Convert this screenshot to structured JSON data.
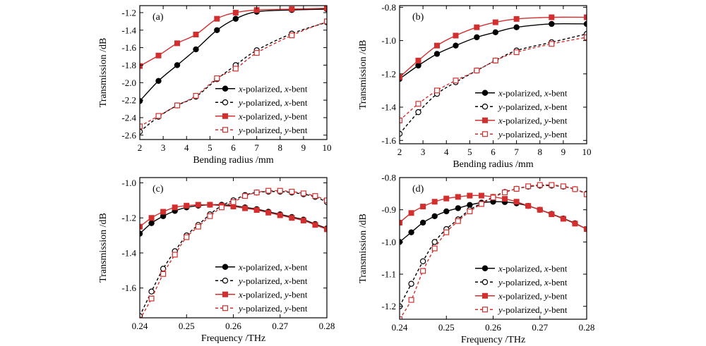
{
  "colors": {
    "black": "#000000",
    "red": "#d32f2f"
  },
  "chart_data": [
    {
      "type": "line",
      "label": "(a)",
      "xlabel": "Bending radius /mm",
      "ylabel": "Transmission /dB",
      "xlim": [
        2,
        10
      ],
      "ylim": [
        -2.65,
        -1.12
      ],
      "xticks": [
        2,
        3,
        4,
        5,
        6,
        7,
        8,
        9,
        10
      ],
      "xtick_labels": [
        "2",
        "3",
        "4",
        "5",
        "6",
        "7",
        "8",
        "9",
        "10"
      ],
      "yticks": [
        -2.6,
        -2.4,
        -2.2,
        -2.0,
        -1.8,
        -1.6,
        -1.4,
        -1.2
      ],
      "ytick_labels": [
        "-2.6",
        "-2.4",
        "-2.2",
        "-2.0",
        "-1.8",
        "-1.6",
        "-1.4",
        "-1.2"
      ],
      "legend_position": "bottom-right",
      "series": [
        {
          "name": "x-polarized, x-bent",
          "color": "#000000",
          "dash": false,
          "marker": "circle-filled",
          "x": [
            2,
            2.8,
            3.6,
            4.4,
            5.3,
            6.1,
            7.0,
            8.5,
            10
          ],
          "y": [
            -2.21,
            -1.98,
            -1.8,
            -1.62,
            -1.4,
            -1.27,
            -1.19,
            -1.17,
            -1.16
          ]
        },
        {
          "name": "y-polarized, x-bent",
          "color": "#000000",
          "dash": true,
          "marker": "circle-open",
          "x": [
            2,
            2.8,
            3.6,
            4.4,
            5.3,
            6.1,
            7.0,
            8.5,
            10
          ],
          "y": [
            -2.56,
            -2.39,
            -2.26,
            -2.16,
            -1.96,
            -1.8,
            -1.63,
            -1.44,
            -1.31
          ]
        },
        {
          "name": "x-polarized, y-bent",
          "color": "#d32f2f",
          "dash": false,
          "marker": "square-filled",
          "x": [
            2,
            2.8,
            3.6,
            4.4,
            5.3,
            6.1,
            7.0,
            8.5,
            10
          ],
          "y": [
            -1.81,
            -1.69,
            -1.55,
            -1.45,
            -1.27,
            -1.2,
            -1.17,
            -1.16,
            -1.15
          ]
        },
        {
          "name": "y-polarized, y-bent",
          "color": "#d32f2f",
          "dash": true,
          "marker": "square-open",
          "x": [
            2,
            2.8,
            3.6,
            4.4,
            5.3,
            6.1,
            7.0,
            8.5,
            10
          ],
          "y": [
            -2.5,
            -2.38,
            -2.26,
            -2.15,
            -1.95,
            -1.84,
            -1.66,
            -1.46,
            -1.3
          ]
        }
      ]
    },
    {
      "type": "line",
      "label": "(b)",
      "xlabel": "Bending radius /mm",
      "ylabel": "Transmission /dB",
      "xlim": [
        2,
        10
      ],
      "ylim": [
        -1.62,
        -0.79
      ],
      "xticks": [
        2,
        3,
        4,
        5,
        6,
        7,
        8,
        9,
        10
      ],
      "xtick_labels": [
        "2",
        "3",
        "4",
        "5",
        "6",
        "7",
        "8",
        "9",
        "10"
      ],
      "yticks": [
        -1.6,
        -1.4,
        -1.2,
        -1.0,
        -0.8
      ],
      "ytick_labels": [
        "-1.6",
        "-1.4",
        "-1.2",
        "-1.0",
        "-0.8"
      ],
      "legend_position": "bottom-right",
      "series": [
        {
          "name": "x-polarized, x-bent",
          "color": "#000000",
          "dash": false,
          "marker": "circle-filled",
          "x": [
            2,
            2.8,
            3.6,
            4.4,
            5.3,
            6.1,
            7.0,
            8.5,
            10
          ],
          "y": [
            -1.23,
            -1.15,
            -1.08,
            -1.03,
            -0.98,
            -0.95,
            -0.92,
            -0.9,
            -0.9
          ]
        },
        {
          "name": "y-polarized, x-bent",
          "color": "#000000",
          "dash": true,
          "marker": "circle-open",
          "x": [
            2,
            2.8,
            3.6,
            4.4,
            5.3,
            6.1,
            7.0,
            8.5,
            10
          ],
          "y": [
            -1.56,
            -1.43,
            -1.32,
            -1.25,
            -1.18,
            -1.12,
            -1.06,
            -1.01,
            -0.96
          ]
        },
        {
          "name": "x-polarized, y-bent",
          "color": "#d32f2f",
          "dash": false,
          "marker": "square-filled",
          "x": [
            2,
            2.8,
            3.6,
            4.4,
            5.3,
            6.1,
            7.0,
            8.5,
            10
          ],
          "y": [
            -1.22,
            -1.12,
            -1.03,
            -0.97,
            -0.92,
            -0.89,
            -0.87,
            -0.86,
            -0.86
          ]
        },
        {
          "name": "y-polarized, y-bent",
          "color": "#d32f2f",
          "dash": true,
          "marker": "square-open",
          "x": [
            2,
            2.8,
            3.6,
            4.4,
            5.3,
            6.1,
            7.0,
            8.5,
            10
          ],
          "y": [
            -1.48,
            -1.38,
            -1.3,
            -1.24,
            -1.18,
            -1.12,
            -1.07,
            -1.02,
            -0.98
          ]
        }
      ]
    },
    {
      "type": "line",
      "label": "(c)",
      "xlabel": "Frequency /THz",
      "ylabel": "Transmission /dB",
      "xlim": [
        0.24,
        0.28
      ],
      "ylim": [
        -1.77,
        -0.97
      ],
      "xticks": [
        0.24,
        0.25,
        0.26,
        0.27,
        0.28
      ],
      "xtick_labels": [
        "0.24",
        "0.25",
        "0.26",
        "0.27",
        "0.28"
      ],
      "yticks": [
        -1.6,
        -1.4,
        -1.2,
        -1.0
      ],
      "ytick_labels": [
        "-1.6",
        "-1.4",
        "-1.2",
        "-1.0"
      ],
      "legend_position": "bottom-right",
      "series": [
        {
          "name": "x-polarized, x-bent",
          "color": "#000000",
          "dash": false,
          "marker": "circle-filled",
          "x": [
            0.24,
            0.2425,
            0.245,
            0.2475,
            0.25,
            0.2525,
            0.255,
            0.2575,
            0.26,
            0.2625,
            0.265,
            0.2675,
            0.27,
            0.2725,
            0.275,
            0.2775,
            0.28
          ],
          "y": [
            -1.29,
            -1.23,
            -1.19,
            -1.16,
            -1.14,
            -1.13,
            -1.125,
            -1.125,
            -1.13,
            -1.14,
            -1.15,
            -1.165,
            -1.18,
            -1.195,
            -1.21,
            -1.235,
            -1.26
          ]
        },
        {
          "name": "y-polarized, x-bent",
          "color": "#000000",
          "dash": true,
          "marker": "circle-open",
          "x": [
            0.24,
            0.2425,
            0.245,
            0.2475,
            0.25,
            0.2525,
            0.255,
            0.2575,
            0.26,
            0.2625,
            0.265,
            0.2675,
            0.27,
            0.2725,
            0.275,
            0.2775,
            0.28
          ],
          "y": [
            -1.76,
            -1.62,
            -1.49,
            -1.39,
            -1.3,
            -1.24,
            -1.18,
            -1.13,
            -1.1,
            -1.07,
            -1.055,
            -1.05,
            -1.05,
            -1.055,
            -1.065,
            -1.08,
            -1.11
          ]
        },
        {
          "name": "x-polarized, y-bent",
          "color": "#d32f2f",
          "dash": false,
          "marker": "square-filled",
          "x": [
            0.24,
            0.2425,
            0.245,
            0.2475,
            0.25,
            0.2525,
            0.255,
            0.2575,
            0.26,
            0.2625,
            0.265,
            0.2675,
            0.27,
            0.2725,
            0.275,
            0.2775,
            0.28
          ],
          "y": [
            -1.25,
            -1.2,
            -1.165,
            -1.14,
            -1.13,
            -1.125,
            -1.125,
            -1.13,
            -1.135,
            -1.145,
            -1.155,
            -1.17,
            -1.185,
            -1.2,
            -1.215,
            -1.24,
            -1.265
          ]
        },
        {
          "name": "y-polarized, y-bent",
          "color": "#d32f2f",
          "dash": true,
          "marker": "square-open",
          "x": [
            0.24,
            0.2425,
            0.245,
            0.2475,
            0.25,
            0.2525,
            0.255,
            0.2575,
            0.26,
            0.2625,
            0.265,
            0.2675,
            0.27,
            0.2725,
            0.275,
            0.2775,
            0.28
          ],
          "y": [
            -1.78,
            -1.66,
            -1.52,
            -1.41,
            -1.31,
            -1.25,
            -1.19,
            -1.14,
            -1.11,
            -1.075,
            -1.055,
            -1.045,
            -1.045,
            -1.05,
            -1.06,
            -1.075,
            -1.1
          ]
        }
      ]
    },
    {
      "type": "line",
      "label": "(d)",
      "xlabel": "Frequency /THz",
      "ylabel": "Transmission /dB",
      "xlim": [
        0.24,
        0.28
      ],
      "ylim": [
        -1.24,
        -0.8
      ],
      "xticks": [
        0.24,
        0.25,
        0.26,
        0.27,
        0.28
      ],
      "xtick_labels": [
        "0.24",
        "0.25",
        "0.26",
        "0.27",
        "0.28"
      ],
      "yticks": [
        -1.2,
        -1.1,
        -1.0,
        -0.9,
        -0.8
      ],
      "ytick_labels": [
        "-1.2",
        "-1.1",
        "-1.0",
        "-0.9",
        "-0.8"
      ],
      "legend_position": "bottom-right",
      "series": [
        {
          "name": "x-polarized, x-bent",
          "color": "#000000",
          "dash": false,
          "marker": "circle-filled",
          "x": [
            0.24,
            0.2425,
            0.245,
            0.2475,
            0.25,
            0.2525,
            0.255,
            0.2575,
            0.26,
            0.2625,
            0.265,
            0.2675,
            0.27,
            0.2725,
            0.275,
            0.2775,
            0.28
          ],
          "y": [
            -1.0,
            -0.97,
            -0.94,
            -0.92,
            -0.905,
            -0.895,
            -0.885,
            -0.878,
            -0.875,
            -0.876,
            -0.88,
            -0.888,
            -0.9,
            -0.913,
            -0.927,
            -0.942,
            -0.96
          ]
        },
        {
          "name": "y-polarized, x-bent",
          "color": "#000000",
          "dash": true,
          "marker": "circle-open",
          "x": [
            0.24,
            0.2425,
            0.245,
            0.2475,
            0.25,
            0.2525,
            0.255,
            0.2575,
            0.26,
            0.2625,
            0.265,
            0.2675,
            0.27,
            0.2725,
            0.275,
            0.2775,
            0.28
          ],
          "y": [
            -1.2,
            -1.13,
            -1.06,
            -1.0,
            -0.96,
            -0.93,
            -0.9,
            -0.88,
            -0.86,
            -0.845,
            -0.835,
            -0.828,
            -0.825,
            -0.825,
            -0.828,
            -0.836,
            -0.85
          ]
        },
        {
          "name": "x-polarized, y-bent",
          "color": "#d32f2f",
          "dash": false,
          "marker": "square-filled",
          "x": [
            0.24,
            0.2425,
            0.245,
            0.2475,
            0.25,
            0.2525,
            0.255,
            0.2575,
            0.26,
            0.2625,
            0.265,
            0.2675,
            0.27,
            0.2725,
            0.275,
            0.2775,
            0.28
          ],
          "y": [
            -0.94,
            -0.91,
            -0.89,
            -0.875,
            -0.865,
            -0.86,
            -0.856,
            -0.856,
            -0.86,
            -0.866,
            -0.875,
            -0.888,
            -0.9,
            -0.914,
            -0.928,
            -0.943,
            -0.96
          ]
        },
        {
          "name": "y-polarized, y-bent",
          "color": "#d32f2f",
          "dash": true,
          "marker": "square-open",
          "x": [
            0.24,
            0.2425,
            0.245,
            0.2475,
            0.25,
            0.2525,
            0.255,
            0.2575,
            0.26,
            0.2625,
            0.265,
            0.2675,
            0.27,
            0.2725,
            0.275,
            0.2775,
            0.28
          ],
          "y": [
            -1.24,
            -1.18,
            -1.09,
            -1.02,
            -0.97,
            -0.935,
            -0.905,
            -0.882,
            -0.862,
            -0.846,
            -0.835,
            -0.827,
            -0.823,
            -0.823,
            -0.827,
            -0.836,
            -0.852
          ]
        }
      ]
    }
  ]
}
